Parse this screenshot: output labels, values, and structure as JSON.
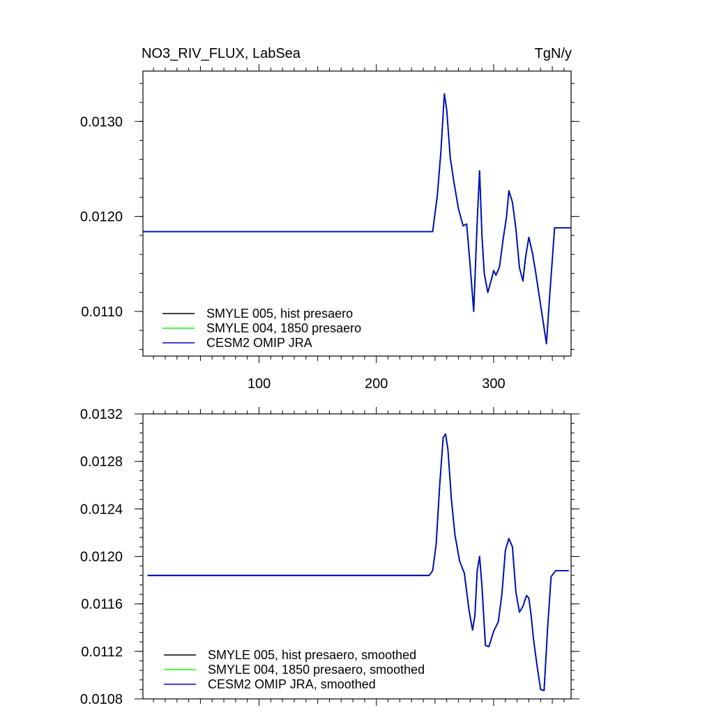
{
  "header": {
    "title": "NO3_RIV_FLUX, LabSea",
    "units": "TgN/y"
  },
  "colors": {
    "smyle005": "#000000",
    "smyle004": "#00ff00",
    "omip": "#0000cd"
  },
  "chart_data": [
    {
      "type": "line",
      "title": "NO3_RIV_FLUX, LabSea",
      "units": "TgN/y",
      "xlim": [
        1,
        366
      ],
      "ylim": [
        0.01053,
        0.01353
      ],
      "xticks": [
        100,
        200,
        300
      ],
      "xtick_labels": [
        "100",
        "200",
        "300"
      ],
      "yticks": [
        0.011,
        0.012,
        0.013
      ],
      "ytick_labels": [
        "0.0110",
        "0.0120",
        "0.0130"
      ],
      "legend_position": "bottom-left",
      "series": [
        {
          "name": "SMYLE 005, hist presaero",
          "color": "#000000"
        },
        {
          "name": "SMYLE 004, 1850 presaero",
          "color": "#00ff00"
        },
        {
          "name": "CESM2 OMIP JRA",
          "color": "#0000cd"
        }
      ],
      "line": {
        "x": [
          1,
          248,
          252,
          255,
          258,
          260,
          263,
          266,
          270,
          274,
          277,
          280,
          283,
          286,
          288,
          290,
          292,
          295,
          298,
          300,
          302,
          305,
          308,
          311,
          313,
          316,
          319,
          322,
          325,
          327,
          330,
          333,
          336,
          339,
          342,
          345,
          348,
          352,
          356,
          360,
          366
        ],
        "y": [
          0.01184,
          0.01184,
          0.01222,
          0.01268,
          0.01329,
          0.01312,
          0.01262,
          0.01237,
          0.01208,
          0.0119,
          0.01192,
          0.01148,
          0.011,
          0.01195,
          0.01248,
          0.0118,
          0.0114,
          0.0112,
          0.01133,
          0.01143,
          0.01138,
          0.01147,
          0.01175,
          0.012,
          0.01227,
          0.01215,
          0.01187,
          0.01146,
          0.01132,
          0.01155,
          0.01178,
          0.01162,
          0.0114,
          0.01115,
          0.01091,
          0.01066,
          0.0112,
          0.01188,
          0.01188,
          0.01188,
          0.01188
        ]
      }
    },
    {
      "type": "line",
      "xlim": [
        1,
        366
      ],
      "ylim": [
        0.0108,
        0.0132
      ],
      "xticks": [
        100,
        200,
        300
      ],
      "yticks": [
        0.0108,
        0.0112,
        0.0116,
        0.012,
        0.0124,
        0.0128,
        0.0132
      ],
      "ytick_labels": [
        "0.0108",
        "0.0112",
        "0.0116",
        "0.0120",
        "0.0124",
        "0.0128",
        "0.0132"
      ],
      "legend_position": "bottom-left",
      "series": [
        {
          "name": "SMYLE 005, hist presaero, smoothed",
          "color": "#000000"
        },
        {
          "name": "SMYLE 004, 1850 presaero, smoothed",
          "color": "#00ff00"
        },
        {
          "name": "CESM2 OMIP JRA, smoothed",
          "color": "#0000cd"
        }
      ],
      "line": {
        "x": [
          5,
          245,
          248,
          251,
          254,
          257,
          259,
          261,
          264,
          267,
          271,
          275,
          279,
          282,
          284,
          286,
          288,
          290,
          293,
          296,
          300,
          304,
          307,
          310,
          313,
          316,
          319,
          322,
          325,
          328,
          330,
          332,
          334,
          337,
          340,
          343,
          346,
          349,
          353,
          358,
          364
        ],
        "y": [
          0.01184,
          0.01184,
          0.01188,
          0.0121,
          0.0126,
          0.013,
          0.01303,
          0.0129,
          0.01248,
          0.01218,
          0.01196,
          0.01186,
          0.01155,
          0.01138,
          0.0115,
          0.01188,
          0.012,
          0.01175,
          0.01125,
          0.01124,
          0.01137,
          0.01145,
          0.01168,
          0.01205,
          0.01215,
          0.01208,
          0.0117,
          0.01153,
          0.01158,
          0.01167,
          0.01165,
          0.0115,
          0.0113,
          0.01108,
          0.01088,
          0.01087,
          0.0114,
          0.01183,
          0.01188,
          0.01188,
          0.01188
        ]
      }
    }
  ]
}
